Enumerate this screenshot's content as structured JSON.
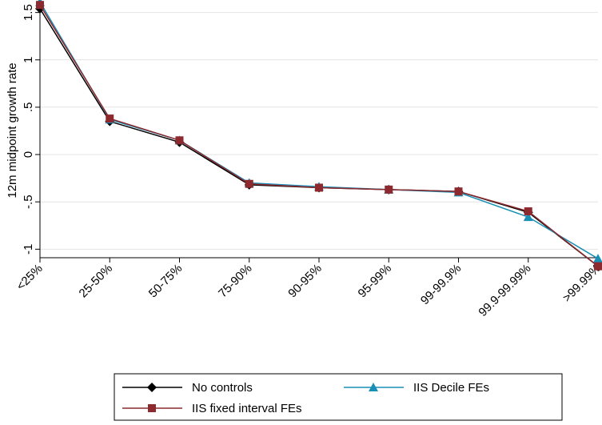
{
  "chart_data": {
    "type": "line",
    "y_label": "12m midpoint growth rate",
    "categories": [
      "<25%",
      "25-50%",
      "50-75%",
      "75-90%",
      "90-95%",
      "95-99%",
      "99-99.9%",
      "99.9-99.99%",
      ">99.99%"
    ],
    "series": [
      {
        "name": "No controls",
        "color": "#000000",
        "marker": "diamond",
        "values": [
          1.54,
          0.35,
          0.13,
          -0.32,
          -0.35,
          -0.37,
          -0.39,
          -0.61,
          -1.18
        ]
      },
      {
        "name": "IIS Decile FEs",
        "color": "#1a8fb5",
        "marker": "triangle",
        "values": [
          1.61,
          0.37,
          0.15,
          -0.3,
          -0.34,
          -0.37,
          -0.4,
          -0.66,
          -1.1
        ]
      },
      {
        "name": "IIS fixed interval FEs",
        "color": "#8c2a2f",
        "marker": "square",
        "values": [
          1.58,
          0.38,
          0.15,
          -0.31,
          -0.35,
          -0.37,
          -0.39,
          -0.6,
          -1.18
        ]
      }
    ],
    "ylim": [
      -1.09,
      1.59
    ],
    "yticks": [
      -1,
      {
        "value": -0.5,
        "label": "-.5"
      },
      0,
      {
        "value": 0.5,
        "label": ".5"
      },
      1,
      1.5
    ],
    "grid": true
  }
}
